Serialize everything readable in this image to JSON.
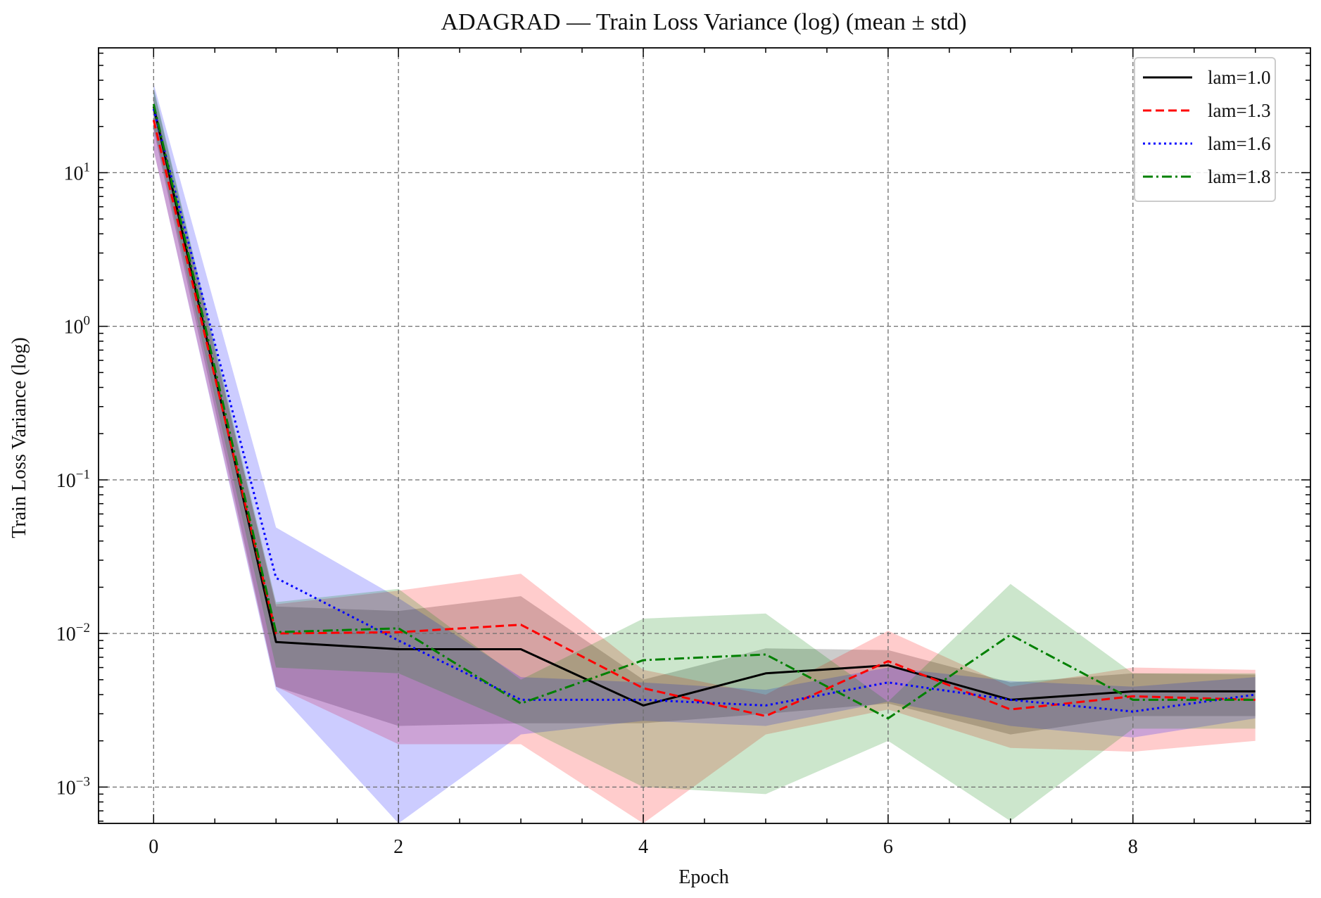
{
  "chart_data": {
    "type": "line",
    "title": "ADAGRAD — Train Loss Variance (log) (mean ± std)",
    "xlabel": "Epoch",
    "ylabel": "Train Loss Variance (log)",
    "yscale": "log",
    "xlim": [
      -0.45,
      9.45
    ],
    "ylim": [
      0.00058,
      65
    ],
    "xticks": [
      0,
      2,
      4,
      6,
      8
    ],
    "xtick_labels": [
      "0",
      "2",
      "4",
      "6",
      "8"
    ],
    "yticks": [
      0.001,
      0.01,
      0.1,
      1,
      10
    ],
    "ytick_labels": [
      {
        "base": "10",
        "exp": "−3"
      },
      {
        "base": "10",
        "exp": "−2"
      },
      {
        "base": "10",
        "exp": "−1"
      },
      {
        "base": "10",
        "exp": "0"
      },
      {
        "base": "10",
        "exp": "1"
      }
    ],
    "grid": true,
    "legend_position": "top-right",
    "x": [
      0,
      1,
      2,
      3,
      4,
      5,
      6,
      7,
      8,
      9
    ],
    "series": [
      {
        "name": "lam=1.0",
        "color": "#000000",
        "dash": "solid",
        "values": [
          27,
          0.0088,
          0.0079,
          0.0079,
          0.0034,
          0.0055,
          0.0062,
          0.0037,
          0.0042,
          0.0042
        ],
        "upper": [
          35,
          0.015,
          0.014,
          0.0175,
          0.005,
          0.008,
          0.0078,
          0.0048,
          0.0055,
          0.0054
        ],
        "lower": [
          19,
          0.0045,
          0.0025,
          0.0026,
          0.0026,
          0.003,
          0.0035,
          0.0022,
          0.0029,
          0.0029
        ]
      },
      {
        "name": "lam=1.3",
        "color": "#ff0000",
        "dash": "dashed",
        "values": [
          22,
          0.01,
          0.0102,
          0.0114,
          0.0044,
          0.0029,
          0.0066,
          0.0032,
          0.0039,
          0.0037
        ],
        "upper": [
          30,
          0.0155,
          0.019,
          0.0245,
          0.0058,
          0.004,
          0.0104,
          0.0045,
          0.006,
          0.0058
        ],
        "lower": [
          14,
          0.0045,
          0.0019,
          0.0019,
          0.0005,
          0.0022,
          0.0032,
          0.0018,
          0.0017,
          0.002
        ]
      },
      {
        "name": "lam=1.6",
        "color": "#0000ff",
        "dash": "dotted",
        "values": [
          26,
          0.023,
          0.009,
          0.0037,
          0.0037,
          0.0034,
          0.0048,
          0.0037,
          0.0031,
          0.004
        ],
        "upper": [
          38,
          0.049,
          0.017,
          0.0052,
          0.0048,
          0.0043,
          0.006,
          0.0049,
          0.0045,
          0.0052
        ],
        "lower": [
          14,
          0.0043,
          0.0005,
          0.0022,
          0.0027,
          0.0025,
          0.0036,
          0.0025,
          0.0021,
          0.0028
        ]
      },
      {
        "name": "lam=1.8",
        "color": "#008000",
        "dash": "dashdot",
        "values": [
          28,
          0.0102,
          0.0108,
          0.0035,
          0.0067,
          0.0073,
          0.0028,
          0.0098,
          0.0037,
          0.0037
        ],
        "upper": [
          36,
          0.016,
          0.0195,
          0.005,
          0.0125,
          0.0135,
          0.0036,
          0.021,
          0.0055,
          0.0055
        ],
        "lower": [
          20,
          0.006,
          0.0055,
          0.0025,
          0.001,
          0.0009,
          0.002,
          0.0006,
          0.0024,
          0.0024
        ]
      }
    ]
  }
}
